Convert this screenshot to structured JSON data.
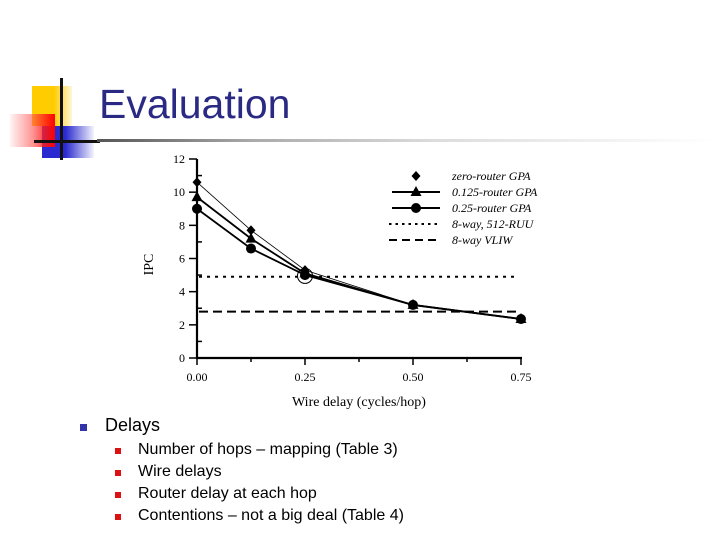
{
  "slide": {
    "title": "Evaluation",
    "bullets": [
      {
        "label": "Delays",
        "children": [
          "Number of hops – mapping (Table 3)",
          "Wire delays",
          "Router delay at each hop",
          "Contentions – not a big deal (Table 4)"
        ]
      }
    ]
  },
  "colors": {
    "title": "#2a2a85",
    "bullet_level1": "#3333aa",
    "bullet_level2": "#dd1111"
  },
  "chart_data": {
    "type": "line",
    "title": "",
    "xlabel": "Wire delay (cycles/hop)",
    "ylabel": "IPC",
    "x": [
      0.0,
      0.125,
      0.25,
      0.5,
      0.75
    ],
    "x_ticks": [
      "0.00",
      "0.25",
      "0.50",
      "0.75"
    ],
    "y_ticks": [
      "0",
      "2",
      "4",
      "6",
      "8",
      "10",
      "12"
    ],
    "xlim": [
      0,
      0.75
    ],
    "ylim": [
      0,
      12
    ],
    "grid": false,
    "legend_position": "upper right",
    "series": [
      {
        "name": "zero-router GPA",
        "marker": "diamond",
        "line": "thin solid",
        "values": [
          10.6,
          7.7,
          5.3,
          3.2,
          2.35
        ]
      },
      {
        "name": "0.125-router GPA",
        "marker": "triangle",
        "line": "solid",
        "values": [
          9.7,
          7.2,
          5.1,
          3.2,
          2.35
        ]
      },
      {
        "name": "0.25-router GPA",
        "marker": "circle",
        "line": "solid",
        "values": [
          9.0,
          6.6,
          5.0,
          3.2,
          2.35
        ]
      },
      {
        "name": "8-way, 512-RUU",
        "marker": "none",
        "line": "dotted",
        "constant": 4.9
      },
      {
        "name": "8-way VLIW",
        "marker": "none",
        "line": "dashed",
        "constant": 2.8
      }
    ]
  }
}
